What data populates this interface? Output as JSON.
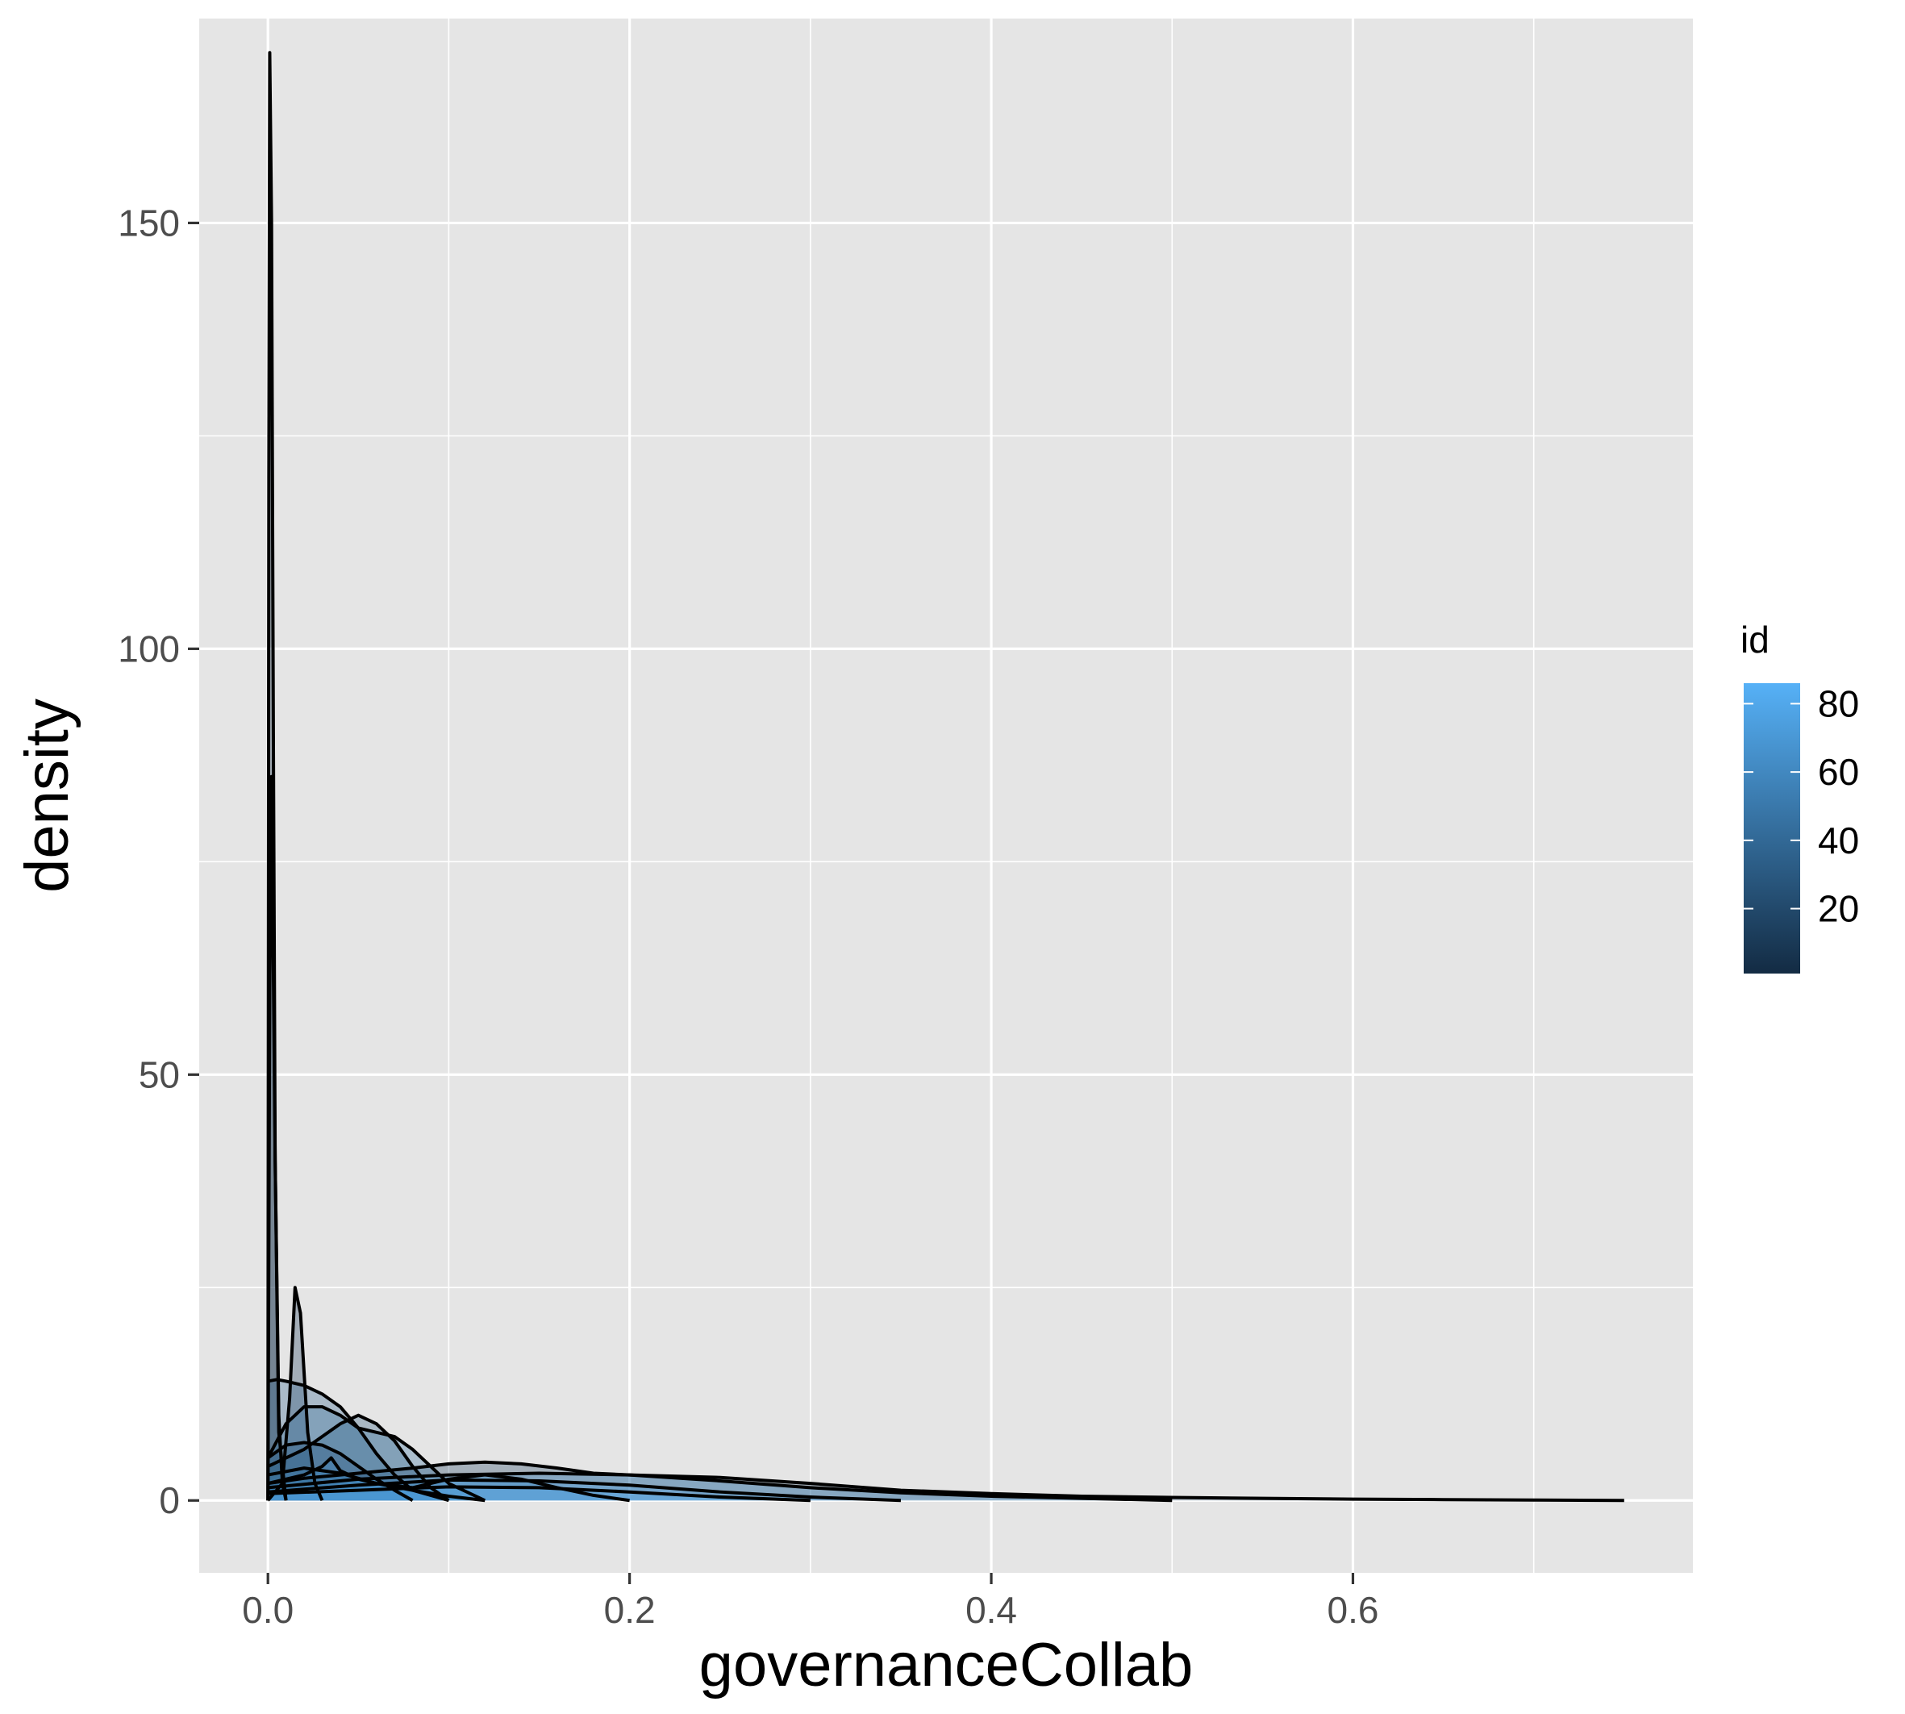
{
  "chart_data": {
    "type": "area",
    "subtype": "density",
    "title": "",
    "xlabel": "governanceCollab",
    "ylabel": "density",
    "xlim": [
      -0.038,
      0.788
    ],
    "ylim": [
      -8.5,
      174
    ],
    "x_ticks": [
      0.0,
      0.2,
      0.4,
      0.6
    ],
    "x_tick_labels": [
      "0.0",
      "0.2",
      "0.4",
      "0.6"
    ],
    "y_ticks": [
      0,
      50,
      100,
      150
    ],
    "y_tick_labels": [
      "0",
      "50",
      "100",
      "150"
    ],
    "grid": true,
    "legend": {
      "title": "id",
      "position": "right",
      "type": "colorbar",
      "range": [
        1,
        86
      ],
      "ticks": [
        20,
        40,
        60,
        80
      ],
      "tick_labels": [
        "20",
        "40",
        "60",
        "80"
      ],
      "color_low": "#132B43",
      "color_high": "#56B1F7"
    },
    "colors": {
      "panel_background": "#e5e5e5",
      "grid": "#ffffff",
      "outline": "#000000"
    },
    "series": [
      {
        "id": 5,
        "x": [
          0.0,
          0.0005,
          0.001,
          0.002,
          0.003,
          0.004,
          0.006,
          0.008,
          0.01
        ],
        "y": [
          0,
          120,
          170,
          150,
          90,
          40,
          10,
          2,
          0
        ]
      },
      {
        "id": 8,
        "x": [
          0.0,
          0.001,
          0.002,
          0.004,
          0.006,
          0.01
        ],
        "y": [
          0,
          60,
          85,
          40,
          8,
          0
        ]
      },
      {
        "id": 12,
        "x": [
          0.0,
          0.008,
          0.012,
          0.015,
          0.018,
          0.022,
          0.026,
          0.03
        ],
        "y": [
          0,
          2,
          12,
          25,
          22,
          8,
          2,
          0
        ]
      },
      {
        "id": 15,
        "x": [
          0.0,
          0.02,
          0.04,
          0.06,
          0.08,
          0.1,
          0.12,
          0.14,
          0.16,
          0.18,
          0.2,
          0.25,
          0.3,
          0.35,
          0.4,
          0.45,
          0.5,
          0.55,
          0.6,
          0.65,
          0.7,
          0.75
        ],
        "y": [
          2,
          2.6,
          3.0,
          3.4,
          3.8,
          4.3,
          4.5,
          4.3,
          3.8,
          3.2,
          3.0,
          2.7,
          2.0,
          1.2,
          0.8,
          0.5,
          0.35,
          0.25,
          0.15,
          0.1,
          0.05,
          0.0
        ]
      },
      {
        "id": 22,
        "x": [
          0.0,
          0.01,
          0.02,
          0.03,
          0.04,
          0.05,
          0.06,
          0.07,
          0.08
        ],
        "y": [
          5,
          6.5,
          6.8,
          6.5,
          5.5,
          4.0,
          2.5,
          1.2,
          0.0
        ]
      },
      {
        "id": 30,
        "x": [
          0.0,
          0.02,
          0.04,
          0.05,
          0.06,
          0.07,
          0.08,
          0.09,
          0.1
        ],
        "y": [
          4,
          6,
          9,
          10,
          9,
          7,
          4,
          1.5,
          0.0
        ]
      },
      {
        "id": 35,
        "x": [
          0.0,
          0.005,
          0.01,
          0.02,
          0.03,
          0.04,
          0.05,
          0.06,
          0.07,
          0.08,
          0.1
        ],
        "y": [
          14,
          14.2,
          14,
          13.5,
          12.5,
          11,
          8.5,
          5.5,
          3,
          1.2,
          0.0
        ]
      },
      {
        "id": 45,
        "x": [
          0.0,
          0.01,
          0.02,
          0.03,
          0.04,
          0.05,
          0.06,
          0.07,
          0.08,
          0.09,
          0.1,
          0.12
        ],
        "y": [
          5,
          9,
          11,
          11,
          10,
          8.5,
          8,
          7.5,
          6,
          4,
          2,
          0.0
        ]
      },
      {
        "id": 52,
        "x": [
          0.0,
          0.02,
          0.04,
          0.06,
          0.08,
          0.1,
          0.12,
          0.14,
          0.16,
          0.18,
          0.2
        ],
        "y": [
          3,
          3.8,
          3.2,
          2.0,
          1.5,
          2.5,
          3.0,
          2.5,
          1.5,
          0.6,
          0.0
        ]
      },
      {
        "id": 60,
        "x": [
          0.0,
          0.01,
          0.02,
          0.03,
          0.035,
          0.04,
          0.05,
          0.06,
          0.08,
          0.1,
          0.12
        ],
        "y": [
          2,
          2.5,
          3,
          4,
          5,
          3.5,
          2.5,
          2.0,
          1.2,
          0.5,
          0.0
        ]
      },
      {
        "id": 68,
        "x": [
          0.0,
          0.05,
          0.1,
          0.15,
          0.2,
          0.25,
          0.3,
          0.35,
          0.4,
          0.45,
          0.5
        ],
        "y": [
          1.5,
          2.5,
          3.0,
          3.2,
          3.0,
          2.3,
          1.5,
          0.9,
          0.5,
          0.25,
          0.0
        ]
      },
      {
        "id": 75,
        "x": [
          0.0,
          0.05,
          0.1,
          0.15,
          0.2,
          0.25,
          0.3,
          0.35
        ],
        "y": [
          1,
          1.8,
          2.4,
          2.3,
          1.8,
          1.0,
          0.4,
          0.0
        ]
      },
      {
        "id": 82,
        "x": [
          0.0,
          0.05,
          0.1,
          0.15,
          0.2,
          0.25,
          0.3
        ],
        "y": [
          0.8,
          1.2,
          1.6,
          1.5,
          1.0,
          0.4,
          0.0
        ]
      }
    ]
  }
}
